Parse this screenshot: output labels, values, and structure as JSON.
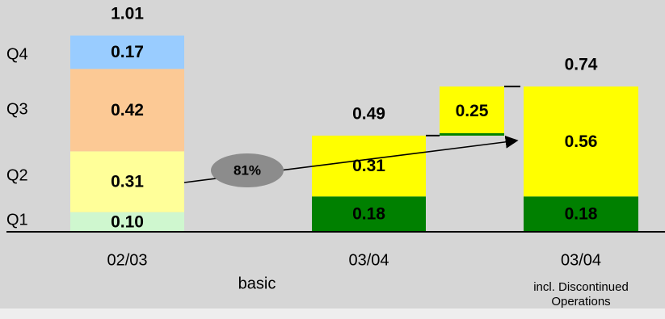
{
  "colors": {
    "background": "#d6d6d6",
    "q1_first": "#cff7cf",
    "q2_first": "#ffff99",
    "q3_first": "#fcc995",
    "q4_first": "#99ccff",
    "yellow": "#ffff00",
    "green": "#008000",
    "ellipse": "#8c8c8c",
    "bottom_band": "#eeeeee"
  },
  "chart_data": {
    "type": "bar",
    "stacked": true,
    "y_unit_note": "",
    "quarter_labels": [
      "Q1",
      "Q2",
      "Q3",
      "Q4"
    ],
    "bars": [
      {
        "id": "bar-0203",
        "category": "02/03",
        "total_label": "1.01",
        "segments": [
          {
            "name": "Q1",
            "value": 0.1,
            "label": "0.10",
            "color_key": "q1_first",
            "text_color": "#000"
          },
          {
            "name": "Q2",
            "value": 0.31,
            "label": "0.31",
            "color_key": "q2_first",
            "text_color": "#000"
          },
          {
            "name": "Q3",
            "value": 0.42,
            "label": "0.42",
            "color_key": "q3_first",
            "text_color": "#000"
          },
          {
            "name": "Q4",
            "value": 0.17,
            "label": "0.17",
            "color_key": "q4_first",
            "text_color": "#000"
          }
        ]
      },
      {
        "id": "bar-0304-basic",
        "category": "03/04",
        "total_label": "0.49",
        "segments": [
          {
            "name": "Q1",
            "value": 0.18,
            "label": "0.18",
            "color_key": "green",
            "text_color": "#fff"
          },
          {
            "name": "Q2",
            "value": 0.31,
            "label": "0.31",
            "color_key": "yellow",
            "text_color": "#000"
          }
        ]
      },
      {
        "id": "bar-0304-incl",
        "category": "03/04",
        "total_label": "0.74",
        "segments": [
          {
            "name": "Q1",
            "value": 0.18,
            "label": "0.18",
            "color_key": "green",
            "text_color": "#fff"
          },
          {
            "name": "Q2-Q3",
            "value": 0.56,
            "label": "0.56",
            "color_key": "yellow",
            "text_color": "#000"
          }
        ]
      }
    ],
    "bridge": {
      "value": 0.25,
      "label": "0.25"
    },
    "growth_badge": "81%",
    "group_labels": [
      "basic",
      "incl. Discontinued Operations"
    ]
  }
}
